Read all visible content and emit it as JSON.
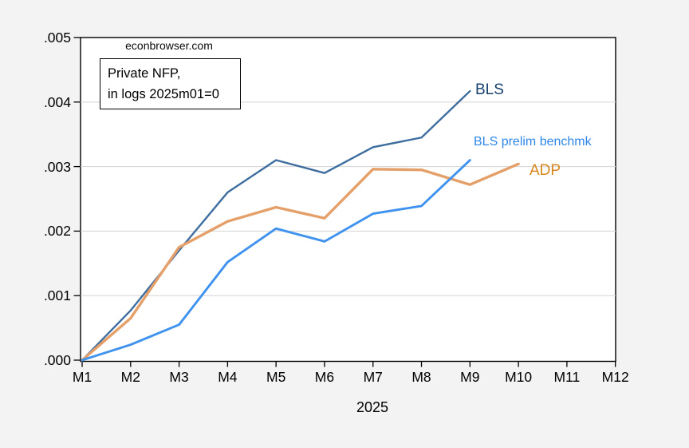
{
  "watermark": "econbrowser.com",
  "annotation": {
    "line1": "Private NFP,",
    "line2": "in logs 2025m01=0"
  },
  "colors": {
    "outer_background": "#f3f3f3",
    "plot_background": "#ffffff",
    "plot_border": "#000000",
    "gridline": "#d9d9d9",
    "bls_line": "#3e6d9f",
    "bls_label": "#16406e",
    "prelim_line": "#3f93ee",
    "prelim_label": "#2e87e9",
    "adp_line": "#e5a06a",
    "adp_label": "#d9871c"
  },
  "chart_data": {
    "type": "line",
    "title": "",
    "xlabel": "2025",
    "ylabel": "",
    "categories": [
      "M1",
      "M2",
      "M3",
      "M4",
      "M5",
      "M6",
      "M7",
      "M8",
      "M9",
      "M10",
      "M11",
      "M12"
    ],
    "ytick_labels": [
      ".000",
      ".001",
      ".002",
      ".003",
      ".004",
      ".005"
    ],
    "ytick_values": [
      0,
      0.001,
      0.002,
      0.003,
      0.004,
      0.005
    ],
    "ylim": [
      0,
      0.005
    ],
    "grid": true,
    "legend_position": "inline-labels-right-of-line-ends",
    "series": [
      {
        "name": "BLS",
        "line_color": "#3e6d9f",
        "label_color": "#16406e",
        "values": [
          0,
          0.00077,
          0.0017,
          0.0026,
          0.0031,
          0.0029,
          0.0033,
          0.00345,
          0.00417,
          null,
          null,
          null
        ]
      },
      {
        "name": "BLS prelim benchmk",
        "line_color": "#3f93ee",
        "label_color": "#2e87e9",
        "values": [
          0,
          0.00024,
          0.00055,
          0.00152,
          0.00204,
          0.00184,
          0.00227,
          0.00239,
          0.0031,
          null,
          null,
          null
        ]
      },
      {
        "name": "ADP",
        "line_color": "#e5a06a",
        "label_color": "#d9871c",
        "values": [
          0,
          0.00065,
          0.00175,
          0.00215,
          0.00237,
          0.0022,
          0.00296,
          0.00295,
          0.00272,
          0.00304,
          null,
          null
        ]
      }
    ]
  }
}
